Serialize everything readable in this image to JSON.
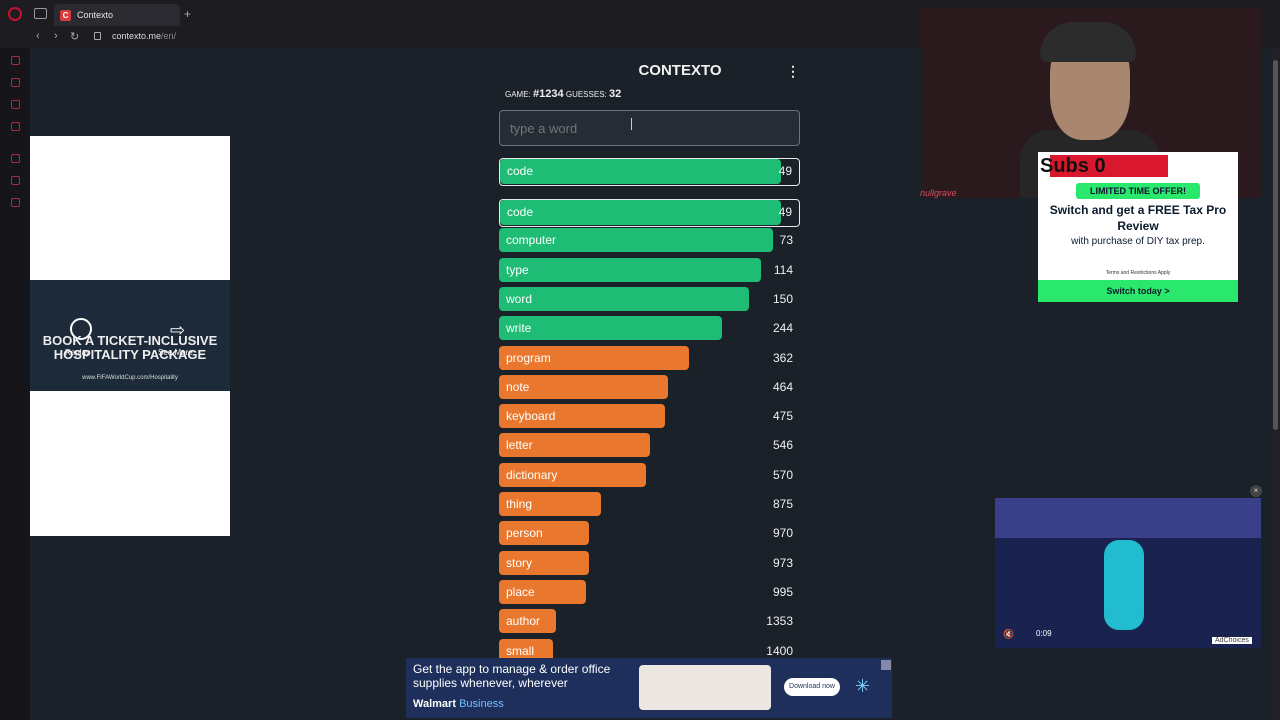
{
  "browser": {
    "tab_title": "Contexto",
    "tab_favicon": "C",
    "url_host": "contexto.me",
    "url_path": "/en/"
  },
  "game": {
    "title": "CONTEXTO",
    "game_label": "GAME:",
    "game_number": "#1234",
    "guesses_label": "GUESSES:",
    "guesses_count": "32",
    "input_placeholder": "type a word",
    "latest_guess": {
      "word": "code",
      "rank": "49",
      "fill": 0.94
    },
    "guesses": [
      {
        "word": "code",
        "rank": "49",
        "fill": 0.94,
        "color": "green"
      },
      {
        "word": "computer",
        "rank": "73",
        "fill": 0.91,
        "color": "green"
      },
      {
        "word": "type",
        "rank": "114",
        "fill": 0.87,
        "color": "green"
      },
      {
        "word": "word",
        "rank": "150",
        "fill": 0.83,
        "color": "green"
      },
      {
        "word": "write",
        "rank": "244",
        "fill": 0.74,
        "color": "green"
      },
      {
        "word": "program",
        "rank": "362",
        "fill": 0.63,
        "color": "orange"
      },
      {
        "word": "note",
        "rank": "464",
        "fill": 0.56,
        "color": "orange"
      },
      {
        "word": "keyboard",
        "rank": "475",
        "fill": 0.55,
        "color": "orange"
      },
      {
        "word": "letter",
        "rank": "546",
        "fill": 0.5,
        "color": "orange"
      },
      {
        "word": "dictionary",
        "rank": "570",
        "fill": 0.49,
        "color": "orange"
      },
      {
        "word": "thing",
        "rank": "875",
        "fill": 0.34,
        "color": "orange"
      },
      {
        "word": "person",
        "rank": "970",
        "fill": 0.3,
        "color": "orange"
      },
      {
        "word": "story",
        "rank": "973",
        "fill": 0.3,
        "color": "orange"
      },
      {
        "word": "place",
        "rank": "995",
        "fill": 0.29,
        "color": "orange"
      },
      {
        "word": "author",
        "rank": "1353",
        "fill": 0.19,
        "color": "orange"
      },
      {
        "word": "small",
        "rank": "1400",
        "fill": 0.18,
        "color": "orange"
      }
    ]
  },
  "ads": {
    "left_video_text": "BOOK A TICKET-INCLUSIVE HOSPITALITY PACKAGE",
    "left_video_url": "www.FIFAWorldCup.com/Hospitality",
    "replay": "Replay",
    "see_more": "See More",
    "subs": "Subs 0",
    "offer": "LIMITED TIME OFFER!",
    "offer_head": "Switch and get a FREE Tax Pro Review",
    "offer_sub": "with purchase of DIY tax prep.",
    "terms": "Terms and Restrictions Apply",
    "switch_cta": "Switch today >",
    "watermark": "nullgrave",
    "video_time": "0:09",
    "adchoices": "AdChoices",
    "bottom_text": "Get the app to manage & order office supplies whenever, wherever",
    "walmart": "Walmart",
    "business": "Business",
    "download": "Download now"
  },
  "colors": {
    "green": "#1ebc74",
    "orange": "#e9782e",
    "page_bg": "#1b2129"
  }
}
